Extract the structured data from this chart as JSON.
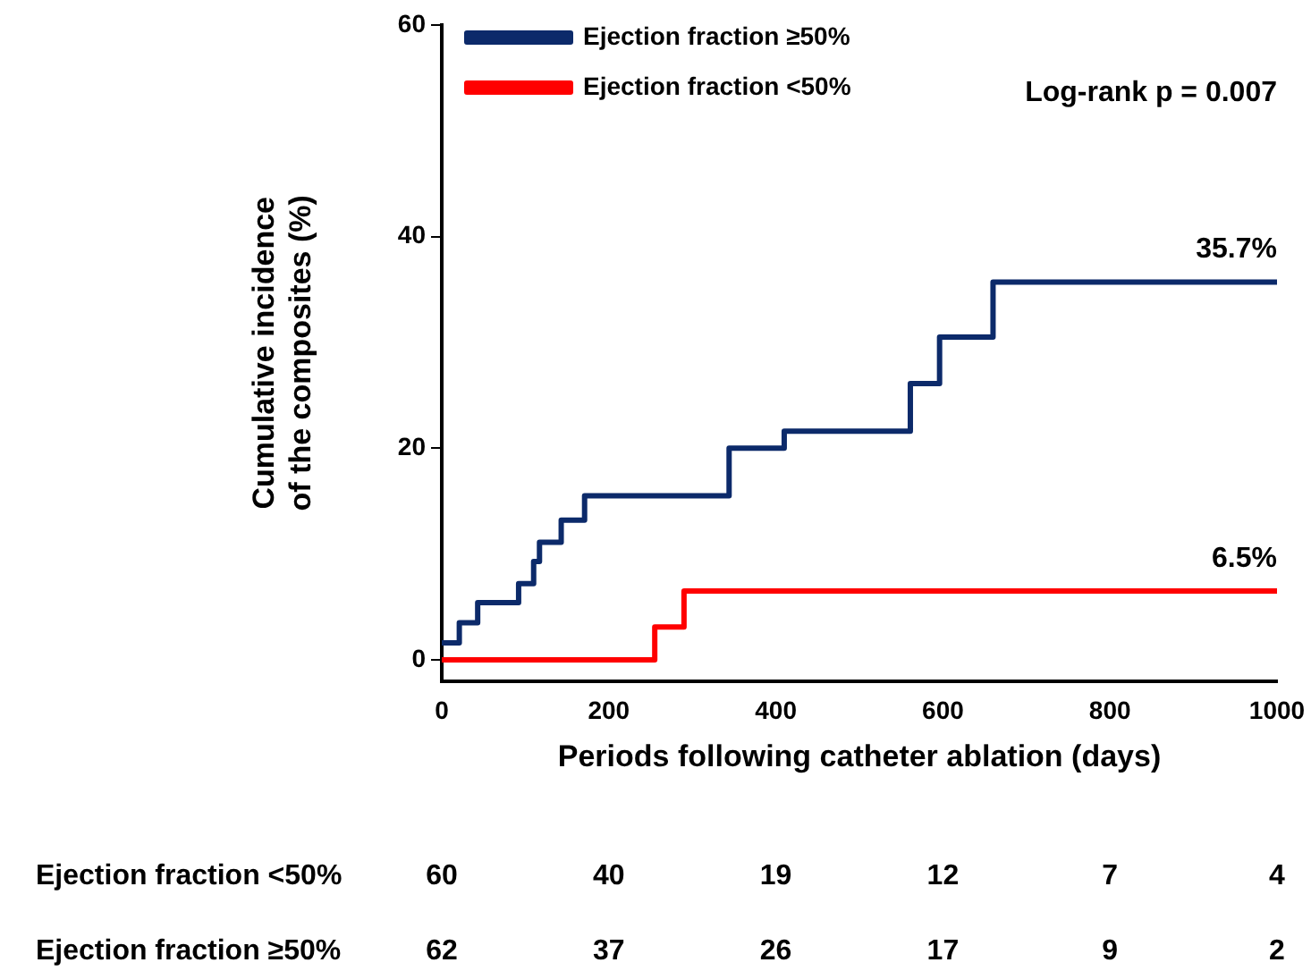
{
  "chart_data": {
    "type": "step",
    "xlabel": "Periods following catheter ablation (days)",
    "ylabel": "Cumulative incidence\nof the composites (%)",
    "xlim": [
      0,
      1000
    ],
    "xticks": [
      0,
      200,
      400,
      600,
      800,
      1000
    ],
    "ylim": [
      -2,
      60
    ],
    "yticks": [
      0,
      20,
      40,
      60
    ],
    "grid": false,
    "legend": "top left",
    "marker": "none",
    "line_style": "solid",
    "series": [
      {
        "name": "Ejection fraction ≥50%",
        "color": "#0c2a6a",
        "x": [
          0,
          21,
          43,
          92,
          110,
          117,
          143,
          171,
          344,
          410,
          561,
          596,
          660,
          1000
        ],
        "values": [
          1.6,
          3.5,
          5.4,
          7.2,
          9.3,
          11.1,
          13.2,
          15.5,
          20.0,
          21.6,
          26.1,
          30.5,
          35.7,
          35.7
        ]
      },
      {
        "name": "Ejection fraction <50%",
        "color": "#ff0000",
        "x": [
          0,
          255,
          290,
          1000
        ],
        "values": [
          0,
          3.1,
          6.5,
          6.5
        ]
      }
    ],
    "annotations": [
      "Log-rank p = 0.007",
      {
        "text": "35.7%",
        "x": 1000,
        "y": 35.7
      },
      {
        "text": "6.5%",
        "x": 1000,
        "y": 6.5
      },
      "Ejection fraction <50%",
      "60",
      "40",
      "19",
      "12",
      "7",
      "4",
      "Ejection fraction ≥50%",
      "62",
      "37",
      "26",
      "17",
      "9",
      "2"
    ]
  }
}
